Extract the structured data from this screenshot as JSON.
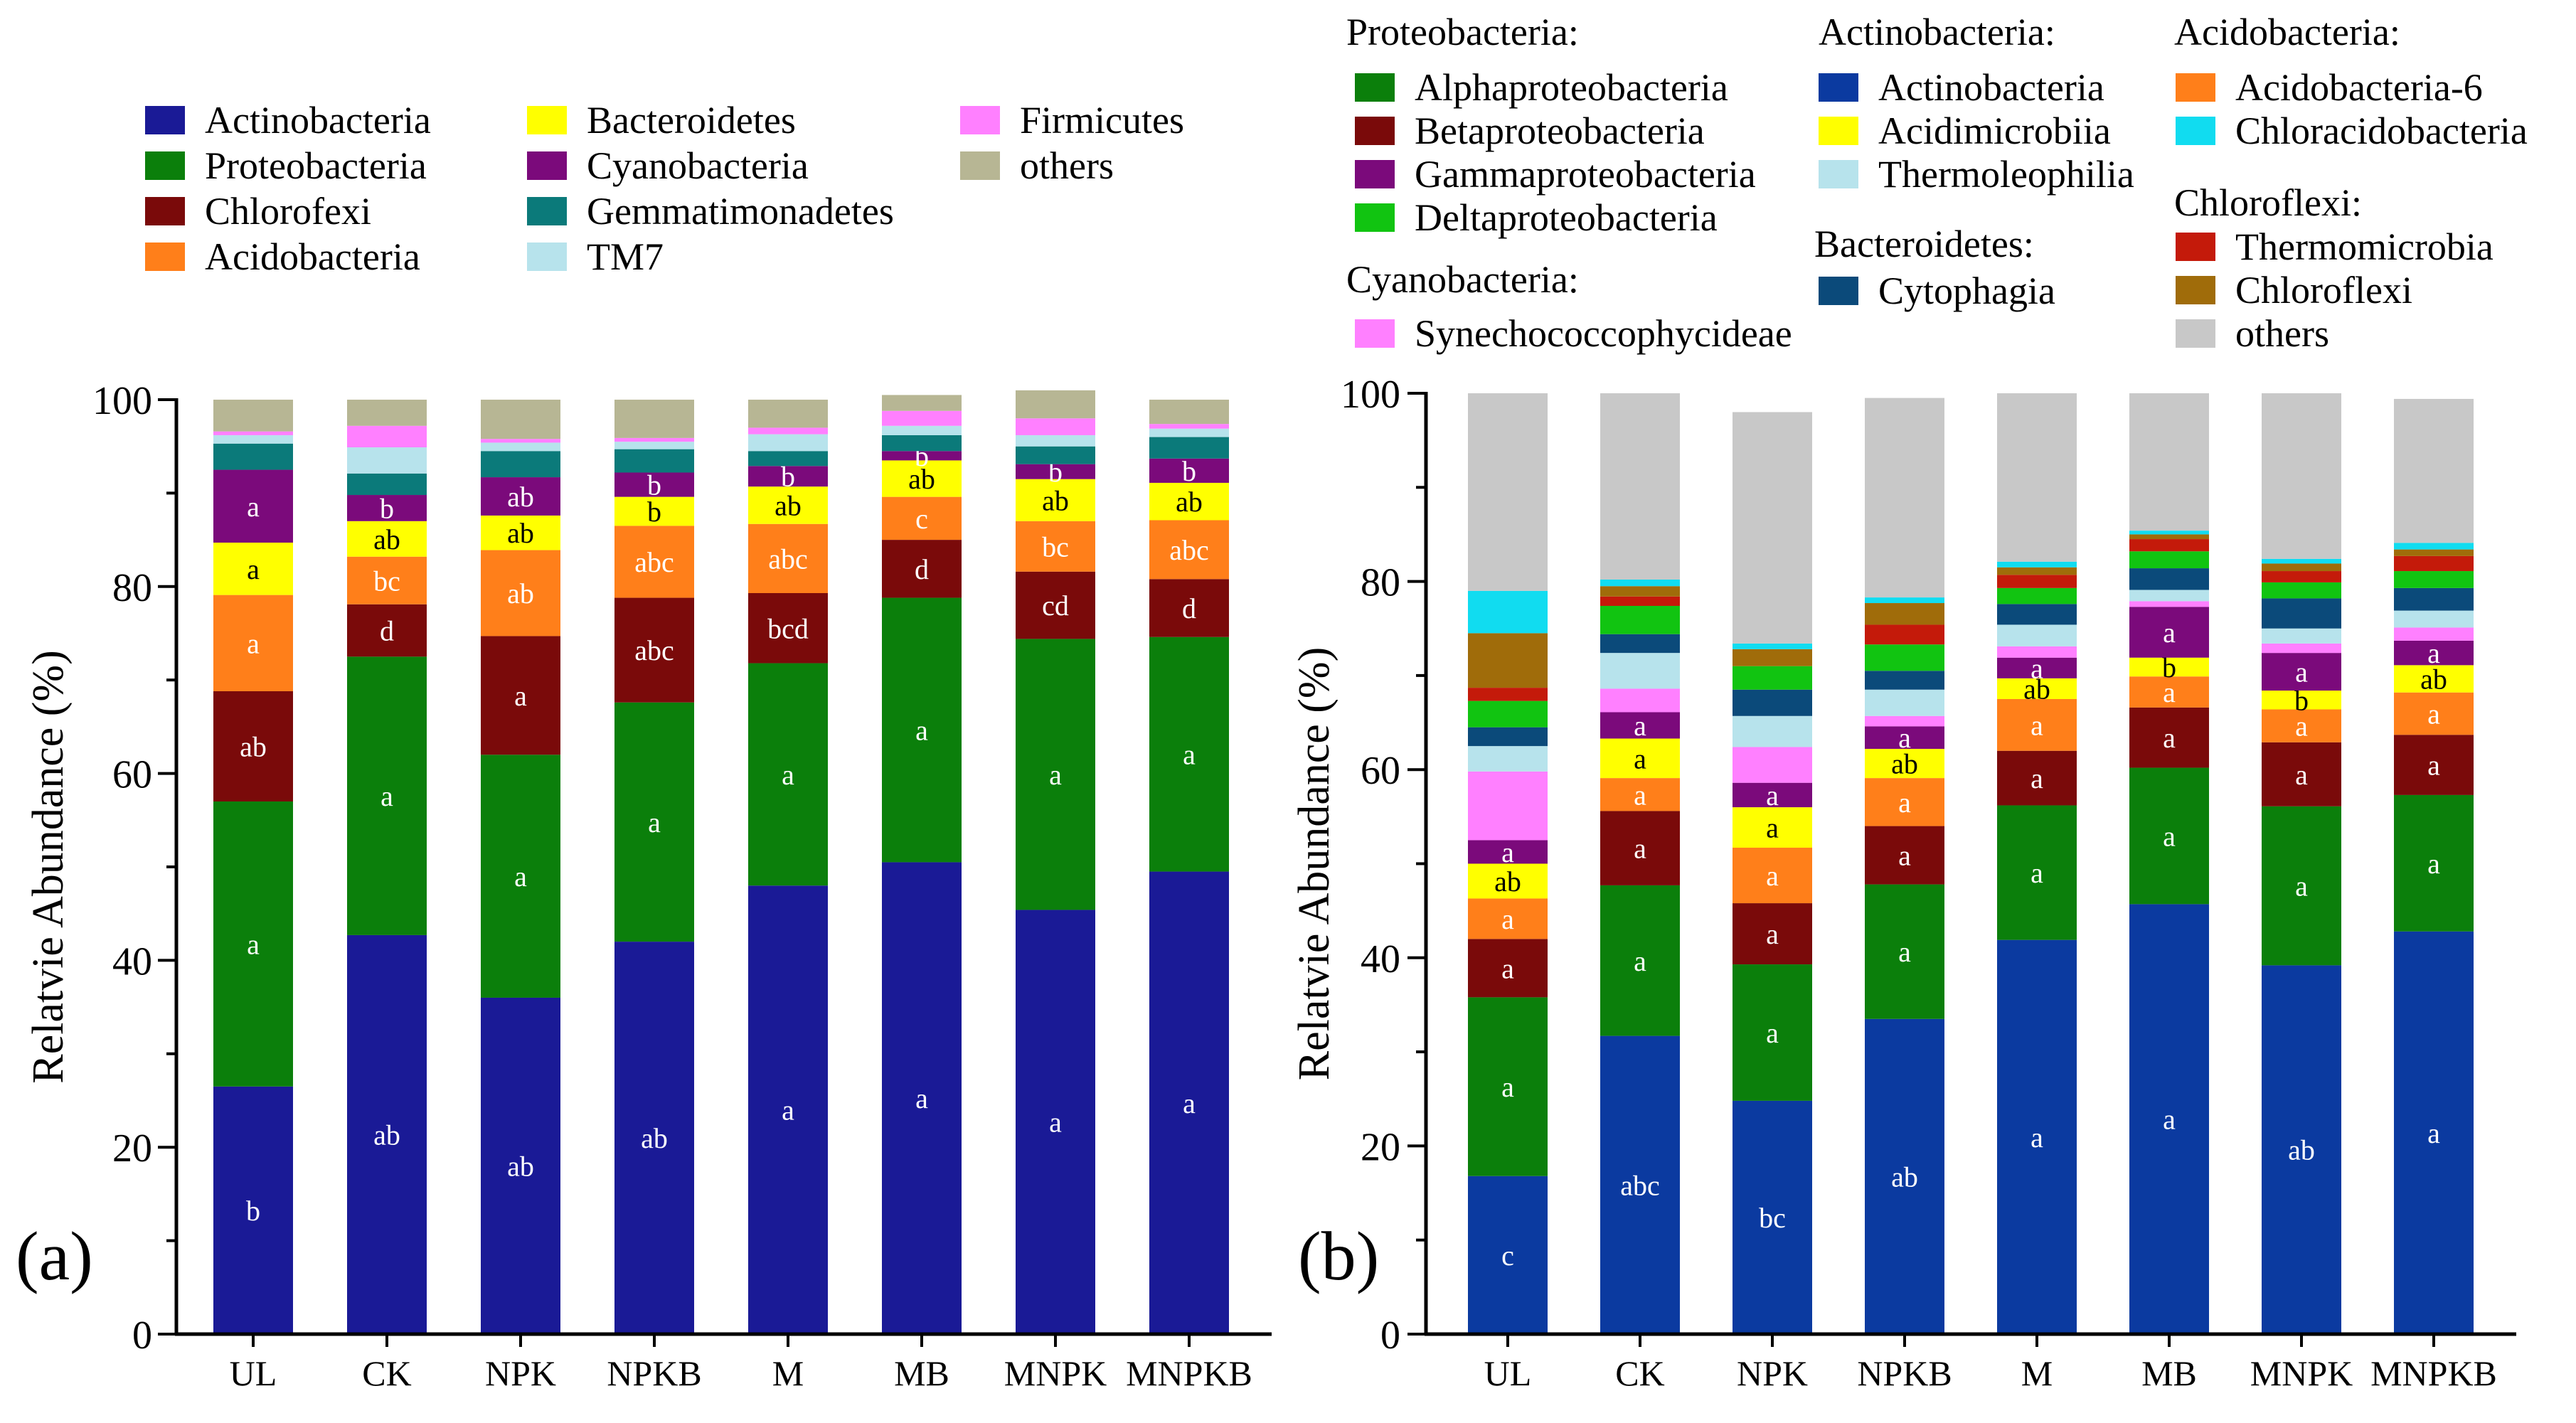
{
  "panels": [
    {
      "label": "(a)",
      "ylabel": "Relatvie Abundance (%)",
      "ylim": [
        0,
        100
      ],
      "legend": {
        "columns": [
          [
            "Actinobacteria",
            "Proteobacteria",
            "Chlorofexi",
            "Acidobacteria"
          ],
          [
            "Bacteroidetes",
            "Cyanobacteria",
            "Gemmatimonadetes",
            "TM7"
          ],
          [
            "Firmicutes",
            "others"
          ]
        ]
      }
    },
    {
      "label": "(b)",
      "ylabel": "Relatvie Abundance (%)",
      "ylim": [
        0,
        100
      ],
      "legend": {
        "groups": [
          {
            "heading": "Proteobacteria:",
            "items": [
              "Alphaproteobacteria",
              "Betaproteobacteria",
              "Gammaproteobacteria",
              "Deltaproteobacteria"
            ]
          },
          {
            "heading": "Cyanobacteria:",
            "items": [
              "Synechococcophycideae"
            ]
          },
          {
            "heading": "Actinobacteria:",
            "items": [
              "Actinobacteria",
              "Acidimicrobiia",
              "Thermoleophilia"
            ]
          },
          {
            "heading": "Bacteroidetes:",
            "items": [
              "Cytophagia"
            ]
          },
          {
            "heading": "Acidobacteria:",
            "items": [
              "Acidobacteria-6",
              "Chloracidobacteria"
            ]
          },
          {
            "heading": "Chloroflexi:",
            "items": [
              "Thermomicrobia",
              "Chloroflexi",
              "others"
            ]
          }
        ]
      }
    }
  ],
  "chart_data": [
    {
      "type": "bar",
      "stacked": true,
      "title": "",
      "xlabel": "",
      "ylabel": "Relatvie Abundance (%)",
      "ylim": [
        0,
        100
      ],
      "yticks": [
        0,
        20,
        40,
        60,
        80,
        100
      ],
      "categories": [
        "UL",
        "CK",
        "NPK",
        "NPKB",
        "M",
        "MB",
        "MNPK",
        "MNPKB"
      ],
      "series": [
        {
          "name": "Actinobacteria",
          "color": "#1a1a96",
          "values": [
            26.5,
            42.7,
            36.0,
            42.0,
            48.0,
            50.5,
            45.4,
            49.5
          ],
          "letters": [
            "b",
            "ab",
            "ab",
            "ab",
            "a",
            "a",
            "a",
            "a"
          ]
        },
        {
          "name": "Proteobacteria",
          "color": "#0b7f0b",
          "values": [
            30.5,
            29.8,
            26.0,
            25.6,
            23.8,
            28.3,
            29.0,
            25.1
          ],
          "letters": [
            "a",
            "a",
            "a",
            "a",
            "a",
            "a",
            "a",
            "a"
          ]
        },
        {
          "name": "Chlorofexi",
          "color": "#7a0a0a",
          "values": [
            11.8,
            5.6,
            12.7,
            11.2,
            7.5,
            6.2,
            7.2,
            6.2
          ],
          "letters": [
            "ab",
            "d",
            "a",
            "abc",
            "bcd",
            "d",
            "cd",
            "d"
          ]
        },
        {
          "name": "Acidobacteria",
          "color": "#ff7f1a",
          "values": [
            10.3,
            5.1,
            9.2,
            7.7,
            7.4,
            4.6,
            5.4,
            6.3
          ],
          "letters": [
            "a",
            "bc",
            "ab",
            "abc",
            "abc",
            "c",
            "bc",
            "abc"
          ]
        },
        {
          "name": "Bacteroidetes",
          "color": "#ffff00",
          "values": [
            5.6,
            3.8,
            3.7,
            3.1,
            4.0,
            3.9,
            4.5,
            4.0
          ],
          "letters": [
            "a",
            "ab",
            "ab",
            "b",
            "ab",
            "ab",
            "ab",
            "ab"
          ]
        },
        {
          "name": "Cyanobacteria",
          "color": "#7b0a7b",
          "values": [
            7.8,
            2.8,
            4.1,
            2.6,
            2.2,
            1.0,
            1.6,
            2.6
          ],
          "letters": [
            "a",
            "b",
            "ab",
            "b",
            "b",
            "b",
            "b",
            "b"
          ]
        },
        {
          "name": "Gemmatimonadetes",
          "color": "#0b7a7a",
          "values": [
            2.8,
            2.3,
            2.8,
            2.5,
            1.6,
            1.7,
            1.9,
            2.3
          ],
          "letters": []
        },
        {
          "name": "TM7",
          "color": "#b7e3ec",
          "values": [
            0.9,
            2.8,
            0.9,
            0.8,
            1.8,
            1.0,
            1.2,
            0.9
          ],
          "letters": []
        },
        {
          "name": "Firmicutes",
          "color": "#ff80ff",
          "values": [
            0.4,
            2.3,
            0.4,
            0.4,
            0.7,
            1.6,
            1.8,
            0.5
          ],
          "letters": []
        },
        {
          "name": "others",
          "color": "#b7b694",
          "values": [
            3.4,
            2.8,
            4.2,
            4.1,
            3.0,
            1.7,
            3.0,
            2.6
          ],
          "letters": []
        }
      ]
    },
    {
      "type": "bar",
      "stacked": true,
      "title": "",
      "xlabel": "",
      "ylabel": "Relatvie Abundance (%)",
      "ylim": [
        0,
        100
      ],
      "yticks": [
        0,
        20,
        40,
        60,
        80,
        100
      ],
      "categories": [
        "UL",
        "CK",
        "NPK",
        "NPKB",
        "M",
        "MB",
        "MNPK",
        "MNPKB"
      ],
      "series": [
        {
          "name": "Actinobacteria",
          "color": "#0b3aa0",
          "values": [
            16.8,
            31.7,
            24.8,
            33.5,
            41.9,
            45.7,
            39.2,
            42.8
          ],
          "letters": [
            "c",
            "abc",
            "bc",
            "ab",
            "a",
            "a",
            "ab",
            "a"
          ]
        },
        {
          "name": "Alphaproteobacteria",
          "color": "#0b7f0b",
          "values": [
            19.0,
            16.0,
            14.5,
            14.3,
            14.3,
            14.5,
            16.9,
            14.5
          ],
          "letters": [
            "a",
            "a",
            "a",
            "a",
            "a",
            "a",
            "a",
            "a"
          ]
        },
        {
          "name": "Betaproteobacteria",
          "color": "#7a0a0a",
          "values": [
            6.2,
            7.9,
            6.5,
            6.2,
            5.8,
            6.4,
            6.8,
            6.4
          ],
          "letters": [
            "a",
            "a",
            "a",
            "a",
            "a",
            "a",
            "a",
            "a"
          ]
        },
        {
          "name": "Acidobacteria-6",
          "color": "#ff7f1a",
          "values": [
            4.3,
            3.5,
            5.9,
            5.1,
            5.5,
            3.3,
            3.5,
            4.5
          ],
          "letters": [
            "a",
            "a",
            "a",
            "a",
            "a",
            "a",
            "a",
            "a"
          ]
        },
        {
          "name": "Acidimicrobiia",
          "color": "#ffff00",
          "values": [
            3.7,
            4.2,
            4.3,
            3.1,
            2.2,
            2.0,
            2.0,
            2.9
          ],
          "letters": [
            "ab",
            "a",
            "a",
            "ab",
            "ab",
            "b",
            "b",
            "ab"
          ]
        },
        {
          "name": "Gammaproteobacteria",
          "color": "#7b0a7b",
          "values": [
            2.5,
            2.8,
            2.6,
            2.4,
            2.2,
            5.4,
            4.0,
            2.6
          ],
          "letters": [
            "a",
            "a",
            "a",
            "a",
            "a",
            "a",
            "a",
            "a"
          ]
        },
        {
          "name": "Synechococcophycideae",
          "color": "#ff80ff",
          "values": [
            7.3,
            2.5,
            3.8,
            1.1,
            1.2,
            0.6,
            1.0,
            1.4
          ],
          "letters": []
        },
        {
          "name": "Thermoleophilia",
          "color": "#b7e3ec",
          "values": [
            2.7,
            3.8,
            3.3,
            2.8,
            2.3,
            1.2,
            1.6,
            1.8
          ],
          "letters": []
        },
        {
          "name": "Cytophagia",
          "color": "#0b4a7a",
          "values": [
            2.0,
            2.0,
            2.8,
            2.0,
            2.2,
            2.3,
            3.2,
            2.4
          ],
          "letters": []
        },
        {
          "name": "Deltaproteobacteria",
          "color": "#11c411",
          "values": [
            2.8,
            3.0,
            2.5,
            2.8,
            1.7,
            1.8,
            1.7,
            1.8
          ],
          "letters": []
        },
        {
          "name": "Thermomicrobia",
          "color": "#c41a0a",
          "values": [
            1.4,
            1.0,
            0.0,
            2.1,
            1.4,
            1.3,
            1.2,
            1.6
          ],
          "letters": []
        },
        {
          "name": "Chloroflexi",
          "color": "#a06c0a",
          "values": [
            5.8,
            1.1,
            1.8,
            2.3,
            0.8,
            0.5,
            0.8,
            0.7
          ],
          "letters": []
        },
        {
          "name": "Chloracidobacteria",
          "color": "#11dcf0",
          "values": [
            4.5,
            0.7,
            0.6,
            0.6,
            0.6,
            0.4,
            0.5,
            0.7
          ],
          "letters": []
        },
        {
          "name": "others",
          "color": "#c8c8c8",
          "values": [
            21.0,
            19.8,
            24.6,
            21.2,
            17.9,
            14.6,
            17.6,
            15.3
          ],
          "letters": []
        }
      ]
    }
  ]
}
